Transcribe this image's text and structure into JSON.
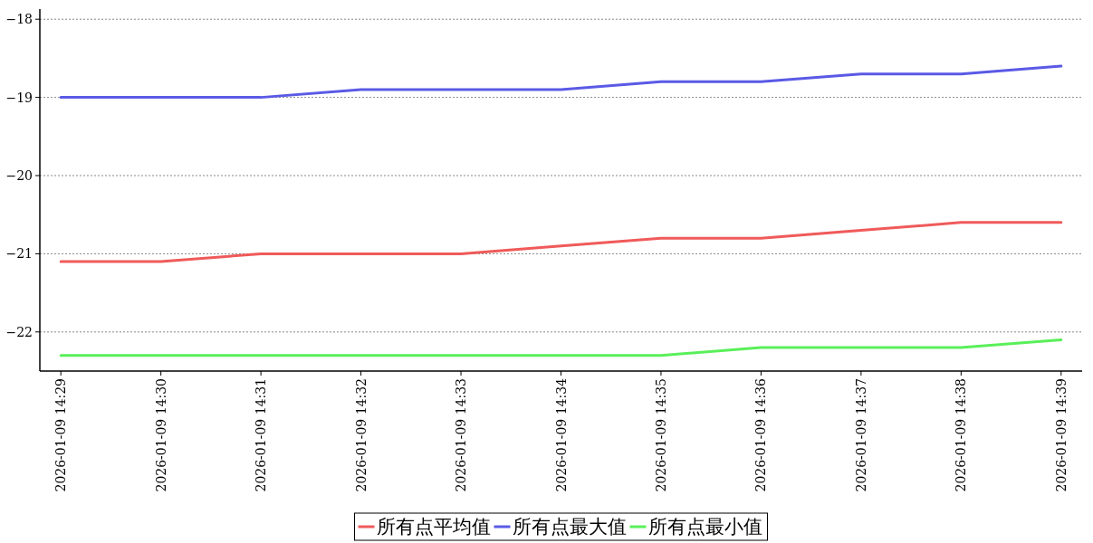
{
  "chart_data": {
    "type": "line",
    "categories": [
      "2026-01-09 14:29",
      "2026-01-09 14:30",
      "2026-01-09 14:31",
      "2026-01-09 14:32",
      "2026-01-09 14:33",
      "2026-01-09 14:34",
      "2026-01-09 14:35",
      "2026-01-09 14:36",
      "2026-01-09 14:37",
      "2026-01-09 14:38",
      "2026-01-09 14:39"
    ],
    "series": [
      {
        "name": "所有点平均值",
        "color": "#f05a5a",
        "values": [
          -21.1,
          -21.1,
          -21.0,
          -21.0,
          -21.0,
          -20.9,
          -20.8,
          -20.8,
          -20.7,
          -20.6,
          -20.6
        ]
      },
      {
        "name": "所有点最大值",
        "color": "#5a5ae6",
        "values": [
          -19.0,
          -19.0,
          -19.0,
          -18.9,
          -18.9,
          -18.9,
          -18.8,
          -18.8,
          -18.7,
          -18.7,
          -18.6
        ]
      },
      {
        "name": "所有点最小值",
        "color": "#5aef5a",
        "values": [
          -22.3,
          -22.3,
          -22.3,
          -22.3,
          -22.3,
          -22.3,
          -22.3,
          -22.2,
          -22.2,
          -22.2,
          -22.1
        ]
      }
    ],
    "ylim": [
      -22.5,
      -17.87
    ],
    "yticks": [
      {
        "value": -22,
        "label": "−22"
      },
      {
        "value": -21,
        "label": "−21"
      },
      {
        "value": -20,
        "label": "−20"
      },
      {
        "value": -19,
        "label": "−19"
      },
      {
        "value": -18,
        "label": "−18"
      }
    ],
    "grid": "y",
    "legend": "bottom",
    "marker": "none",
    "line_style": "solid"
  }
}
